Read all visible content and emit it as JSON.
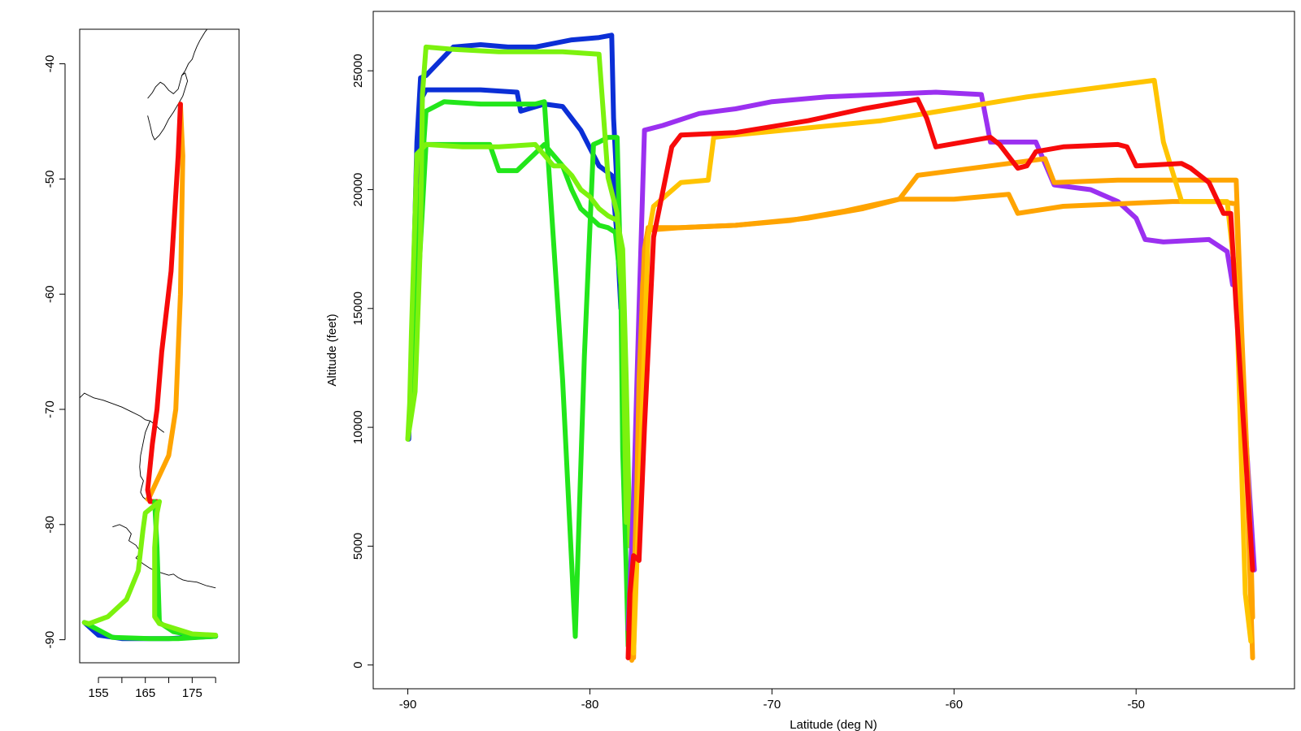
{
  "colors": {
    "blue": "#0b2fd6",
    "green": "#22e61a",
    "lime": "#7cf20e",
    "purple": "#9b30f0",
    "red": "#f70a0a",
    "orange": "#ffa400",
    "gold": "#ffc400",
    "coast": "#000000"
  },
  "chart_data": [
    {
      "type": "scatter",
      "panel": "map",
      "title": "",
      "xlabel": "",
      "ylabel": "",
      "xlim": [
        151,
        185
      ],
      "ylim": [
        -92,
        -37
      ],
      "xticks": [
        155,
        160,
        165,
        170,
        175,
        180
      ],
      "xtick_labels": [
        "155",
        "",
        "165",
        "",
        "175",
        ""
      ],
      "yticks": [
        -40,
        -50,
        -60,
        -70,
        -80,
        -90
      ],
      "ytick_labels": [
        "-40",
        "-50",
        "-60",
        "-70",
        "-80",
        "-90"
      ],
      "grid": false,
      "series": [
        {
          "color": "orange",
          "x": [
            172.5,
            173.0,
            172.5,
            171.5,
            170.0,
            166.0,
            165.5
          ],
          "y": [
            -43.5,
            -48.0,
            -60.0,
            -70.0,
            -74.0,
            -77.5,
            -77.8
          ]
        },
        {
          "color": "red",
          "x": [
            172.5,
            172.0,
            170.5,
            168.5,
            167.5,
            166.5,
            165.5,
            166.0,
            167.5
          ],
          "y": [
            -43.5,
            -48.0,
            -58.0,
            -65.0,
            -70.0,
            -73.0,
            -77.0,
            -78.0,
            -78.0
          ]
        },
        {
          "color": "blue",
          "x": [
            152.0,
            155.0,
            160.0,
            170.0,
            180.0
          ],
          "y": [
            -88.5,
            -89.6,
            -89.9,
            -89.9,
            -89.7
          ]
        },
        {
          "color": "green",
          "x": [
            167.0,
            167.5,
            168.0,
            171.0,
            176.0,
            180.0,
            172.0,
            166.0,
            158.0,
            152.0
          ],
          "y": [
            -78.0,
            -82.0,
            -88.5,
            -89.3,
            -89.7,
            -89.7,
            -89.9,
            -89.9,
            -89.8,
            -88.5
          ]
        },
        {
          "color": "lime",
          "x": [
            168.0,
            165.0,
            164.5,
            163.5,
            161.0,
            157.0,
            153.0,
            152.0
          ],
          "y": [
            -78.0,
            -79.0,
            -80.5,
            -84.0,
            -86.5,
            -88.0,
            -88.6,
            -88.5
          ]
        },
        {
          "color": "lime",
          "x": [
            168.0,
            167.5,
            167.0,
            167.0,
            168.0,
            175.0,
            180.0
          ],
          "y": [
            -78.0,
            -79.0,
            -82.0,
            -88.0,
            -88.6,
            -89.5,
            -89.6
          ]
        }
      ],
      "coastlines": [
        {
          "x": [
            165.5,
            166.5,
            167.2,
            168.2,
            169.0,
            170.0,
            171.0,
            172.0,
            172.8,
            173.5,
            174.0,
            173.0,
            172.0,
            171.0,
            170.0,
            169.0,
            168.0,
            167.0,
            166.5,
            166.0,
            165.5
          ],
          "y": [
            -43.0,
            -42.5,
            -42.0,
            -41.6,
            -41.8,
            -42.3,
            -42.6,
            -42.2,
            -41.0,
            -40.8,
            -41.5,
            -42.8,
            -43.5,
            -44.2,
            -44.8,
            -45.6,
            -46.2,
            -46.6,
            -46.2,
            -45.3,
            -44.5
          ]
        },
        {
          "x": [
            172.8,
            173.5,
            174.2,
            175.0,
            175.5,
            176.0,
            176.6,
            177.2,
            177.8,
            178.2
          ],
          "y": [
            -41.0,
            -40.6,
            -40.0,
            -39.6,
            -39.0,
            -38.5,
            -38.0,
            -37.6,
            -37.2,
            -37.0
          ]
        },
        {
          "x": [
            151.0,
            152.0,
            153.0,
            154.0,
            156.0,
            158.0,
            160.0,
            162.0,
            164.0,
            165.0,
            166.0,
            167.0,
            168.0,
            169.0
          ],
          "y": [
            -69.0,
            -68.6,
            -68.8,
            -69.0,
            -69.2,
            -69.5,
            -69.8,
            -70.2,
            -70.6,
            -70.9,
            -71.0,
            -71.3,
            -71.7,
            -72.0
          ]
        },
        {
          "x": [
            166.0,
            165.0,
            164.5,
            164.0,
            163.8,
            164.0,
            164.6,
            164.2,
            164.0,
            164.5,
            165.0,
            165.5
          ],
          "y": [
            -71.0,
            -72.0,
            -73.0,
            -74.0,
            -75.0,
            -75.8,
            -76.2,
            -76.8,
            -77.2,
            -77.6,
            -77.8,
            -77.9
          ]
        },
        {
          "x": [
            158.0,
            159.5,
            161.0,
            162.0,
            161.5,
            163.0,
            164.0,
            163.0,
            164.5,
            166.0,
            167.0,
            168.5,
            170.0,
            171.0,
            172.0,
            173.0,
            174.0,
            176.0,
            178.0,
            180.0
          ],
          "y": [
            -80.2,
            -80.0,
            -80.3,
            -80.8,
            -81.4,
            -81.8,
            -82.4,
            -82.9,
            -83.4,
            -83.8,
            -84.0,
            -84.2,
            -84.4,
            -84.3,
            -84.6,
            -84.8,
            -84.9,
            -85.0,
            -85.3,
            -85.5
          ]
        }
      ]
    },
    {
      "type": "scatter",
      "panel": "profile",
      "title": "",
      "xlabel": "Latitude (deg N)",
      "ylabel": "Altitude (feet)",
      "xlim": [
        -91.9,
        -41.3
      ],
      "ylim": [
        -1000,
        27500
      ],
      "xticks": [
        -90,
        -80,
        -70,
        -60,
        -50
      ],
      "xtick_labels": [
        "-90",
        "-80",
        "-70",
        "-60",
        "-50"
      ],
      "yticks": [
        0,
        5000,
        10000,
        15000,
        20000,
        25000
      ],
      "ytick_labels": [
        "0",
        "5000",
        "10000",
        "15000",
        "20000",
        "25000"
      ],
      "grid": false,
      "series": [
        {
          "color": "blue",
          "x": [
            -89.95,
            -89.8,
            -89.5,
            -89.3,
            -89.0,
            -88.5,
            -87.5,
            -86.0,
            -84.5,
            -83.0,
            -81.0,
            -79.5,
            -78.8,
            -78.7,
            -78.3
          ],
          "y": [
            9500,
            13000,
            22000,
            24700,
            24800,
            25200,
            26000,
            26100,
            26000,
            26000,
            26300,
            26400,
            26500,
            23000,
            17000
          ]
        },
        {
          "color": "blue",
          "x": [
            -89.5,
            -89.2,
            -89.0,
            -87.5,
            -86.0,
            -84.0,
            -83.8,
            -82.5,
            -81.5,
            -80.5,
            -79.5,
            -78.8,
            -78.5,
            -78.3
          ],
          "y": [
            20000,
            23900,
            24200,
            24200,
            24200,
            24100,
            23300,
            23600,
            23500,
            22500,
            21000,
            20600,
            18000,
            15000
          ]
        },
        {
          "color": "green",
          "x": [
            -89.8,
            -89.3,
            -89.0,
            -88.0,
            -86.0,
            -84.5,
            -84.0,
            -83.0,
            -82.5,
            -81.5,
            -80.8,
            -80.3,
            -79.8,
            -79.5,
            -79.0,
            -78.5,
            -78.3,
            -78.2,
            -78.0,
            -77.9
          ],
          "y": [
            11000,
            20000,
            23300,
            23700,
            23600,
            23600,
            23600,
            23600,
            23700,
            12000,
            1200,
            13000,
            21900,
            22000,
            22200,
            22200,
            16000,
            9000,
            4000,
            800
          ]
        },
        {
          "color": "green",
          "x": [
            -89.5,
            -89.0,
            -87.0,
            -85.5,
            -85.0,
            -84.0,
            -82.5,
            -81.5,
            -81.0,
            -80.5,
            -79.5,
            -79.0,
            -78.8,
            -78.6,
            -78.3,
            -78.1
          ],
          "y": [
            15000,
            21900,
            21900,
            21900,
            20800,
            20800,
            21900,
            21000,
            20000,
            19200,
            18500,
            18400,
            18300,
            18200,
            16000,
            9000
          ]
        },
        {
          "color": "lime",
          "x": [
            -90.0,
            -89.8,
            -89.6,
            -89.5,
            -89.3,
            -89.2,
            -89.0,
            -87.5,
            -85.0,
            -83.0,
            -81.5,
            -79.5,
            -79.0,
            -78.5,
            -78.2,
            -78.0
          ],
          "y": [
            9500,
            10500,
            11500,
            13500,
            18000,
            24000,
            26000,
            25900,
            25800,
            25800,
            25800,
            25700,
            20500,
            19000,
            15000,
            6000
          ]
        },
        {
          "color": "lime",
          "x": [
            -90.0,
            -89.9,
            -89.8,
            -89.5,
            -89.0,
            -87.0,
            -85.0,
            -83.0,
            -82.0,
            -81.5,
            -81.0,
            -80.5,
            -80.0,
            -79.5,
            -79.0,
            -78.5,
            -78.2,
            -78.0,
            -77.8
          ],
          "y": [
            9500,
            11000,
            14000,
            21500,
            21900,
            21800,
            21800,
            21900,
            21000,
            21000,
            20600,
            20000,
            19700,
            19200,
            18900,
            18700,
            17500,
            12000,
            5000
          ]
        },
        {
          "color": "purple",
          "x": [
            -77.9,
            -77.6,
            -77.3,
            -77.0,
            -76.0,
            -74.0,
            -72.0,
            -70.0,
            -67.0,
            -64.0,
            -61.0,
            -58.5,
            -58.0,
            -57.0,
            -55.5,
            -54.5,
            -52.5,
            -51.0,
            -50.0,
            -49.5,
            -48.5,
            -46.0,
            -45.0,
            -44.7,
            -44.5,
            -43.5
          ],
          "y": [
            1500,
            7000,
            15000,
            22500,
            22700,
            23200,
            23400,
            23700,
            23900,
            24000,
            24100,
            24000,
            22000,
            22000,
            22000,
            20200,
            20000,
            19500,
            18800,
            17900,
            17800,
            17900,
            17400,
            16000,
            16000,
            4000
          ]
        },
        {
          "color": "orange",
          "x": [
            -77.6,
            -77.3,
            -77.0,
            -76.8,
            -75.0,
            -72.0,
            -69.0,
            -66.0,
            -63.0,
            -62.5,
            -60.0,
            -57.0,
            -56.5,
            -54.0,
            -51.0,
            -48.0,
            -45.5,
            -44.5,
            -44.0,
            -43.6
          ],
          "y": [
            300,
            12000,
            17500,
            18400,
            18400,
            18500,
            18700,
            19100,
            19600,
            19600,
            19600,
            19800,
            19000,
            19300,
            19400,
            19500,
            19500,
            19400,
            10000,
            300
          ]
        },
        {
          "color": "orange",
          "x": [
            -77.7,
            -77.4,
            -77.1,
            -76.8,
            -75.0,
            -72.0,
            -68.0,
            -65.0,
            -63.0,
            -62.0,
            -58.0,
            -55.0,
            -54.5,
            -51.0,
            -47.0,
            -44.5,
            -44.2,
            -43.7,
            -43.6
          ],
          "y": [
            200,
            8000,
            16000,
            18300,
            18400,
            18500,
            18800,
            19200,
            19600,
            20600,
            21000,
            21300,
            20300,
            20400,
            20400,
            20400,
            14000,
            5000,
            2000
          ]
        },
        {
          "color": "gold",
          "x": [
            -77.6,
            -77.2,
            -76.8,
            -76.5,
            -75.0,
            -73.5,
            -73.2,
            -72.0,
            -68.0,
            -64.0,
            -60.0,
            -56.0,
            -52.0,
            -49.0,
            -48.5,
            -47.5,
            -46.0,
            -45.0,
            -44.5,
            -44.0,
            -43.7
          ],
          "y": [
            500,
            9000,
            18000,
            19300,
            20300,
            20400,
            22200,
            22300,
            22600,
            22900,
            23400,
            23900,
            24300,
            24600,
            22000,
            19500,
            19500,
            19500,
            16000,
            3000,
            1000
          ]
        },
        {
          "color": "red",
          "x": [
            -77.9,
            -77.8,
            -77.6,
            -77.3,
            -77.0,
            -76.5,
            -75.5,
            -75.0,
            -72.0,
            -68.0,
            -65.0,
            -62.0,
            -61.5,
            -61.0,
            -58.0,
            -57.5,
            -56.5,
            -56.0,
            -55.5,
            -54.0,
            -51.0,
            -50.5,
            -50.0,
            -47.5,
            -47.0,
            -46.0,
            -45.2,
            -44.8,
            -44.5,
            -44.0,
            -43.6
          ],
          "y": [
            300,
            3000,
            4600,
            4400,
            10000,
            18000,
            21800,
            22300,
            22400,
            22900,
            23400,
            23800,
            23000,
            21800,
            22200,
            21900,
            20900,
            21000,
            21600,
            21800,
            21900,
            21800,
            21000,
            21100,
            20900,
            20300,
            19000,
            19000,
            15000,
            9000,
            4000
          ]
        }
      ]
    }
  ]
}
